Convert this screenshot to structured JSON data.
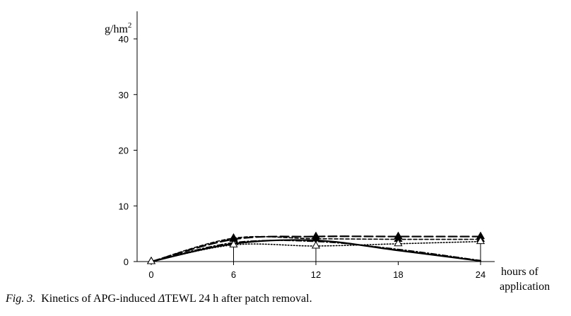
{
  "chart_data": {
    "type": "line",
    "title": "",
    "ylabel": "g/hm",
    "ylabel_superscript": "2",
    "xlabel": [
      "hours of",
      "application"
    ],
    "ylim": [
      0,
      40
    ],
    "xlim": [
      0,
      24
    ],
    "y_ticks": [
      0,
      10,
      20,
      30,
      40
    ],
    "x_ticks": [
      0,
      6,
      12,
      18,
      24
    ],
    "x": [
      0,
      6,
      12,
      18,
      24
    ],
    "series": [
      {
        "name": "solid",
        "style": "solid",
        "marker": "none",
        "values": [
          0,
          3.2,
          3.8,
          2.0,
          0.1
        ]
      },
      {
        "name": "long-dash",
        "style": "long-dash",
        "marker": "filled-triangle",
        "values": [
          0,
          4.0,
          4.5,
          4.5,
          4.5
        ]
      },
      {
        "name": "short-dash",
        "style": "short-dash",
        "marker": "filled-triangle",
        "values": [
          0,
          4.2,
          4.1,
          4.0,
          4.0
        ]
      },
      {
        "name": "dotted",
        "style": "dotted",
        "marker": "open-triangle",
        "values": [
          0,
          3.0,
          2.8,
          3.2,
          3.6
        ]
      },
      {
        "name": "dash-dot",
        "style": "dash-dot",
        "marker": "none",
        "values": [
          0,
          3.4,
          3.6,
          2.2,
          0.2
        ]
      }
    ],
    "error_bars": [
      {
        "x": 6,
        "low": 0.0,
        "high": 4.3
      },
      {
        "x": 12,
        "low": 0.0,
        "high": 4.6
      },
      {
        "x": 24,
        "low": 0.0,
        "high": 4.6
      }
    ]
  },
  "caption": {
    "figure_label": "Fig. 3.",
    "text_before": "Kinetics of APG-induced ",
    "delta": "Δ",
    "text_after": "TEWL 24 h after patch removal."
  }
}
